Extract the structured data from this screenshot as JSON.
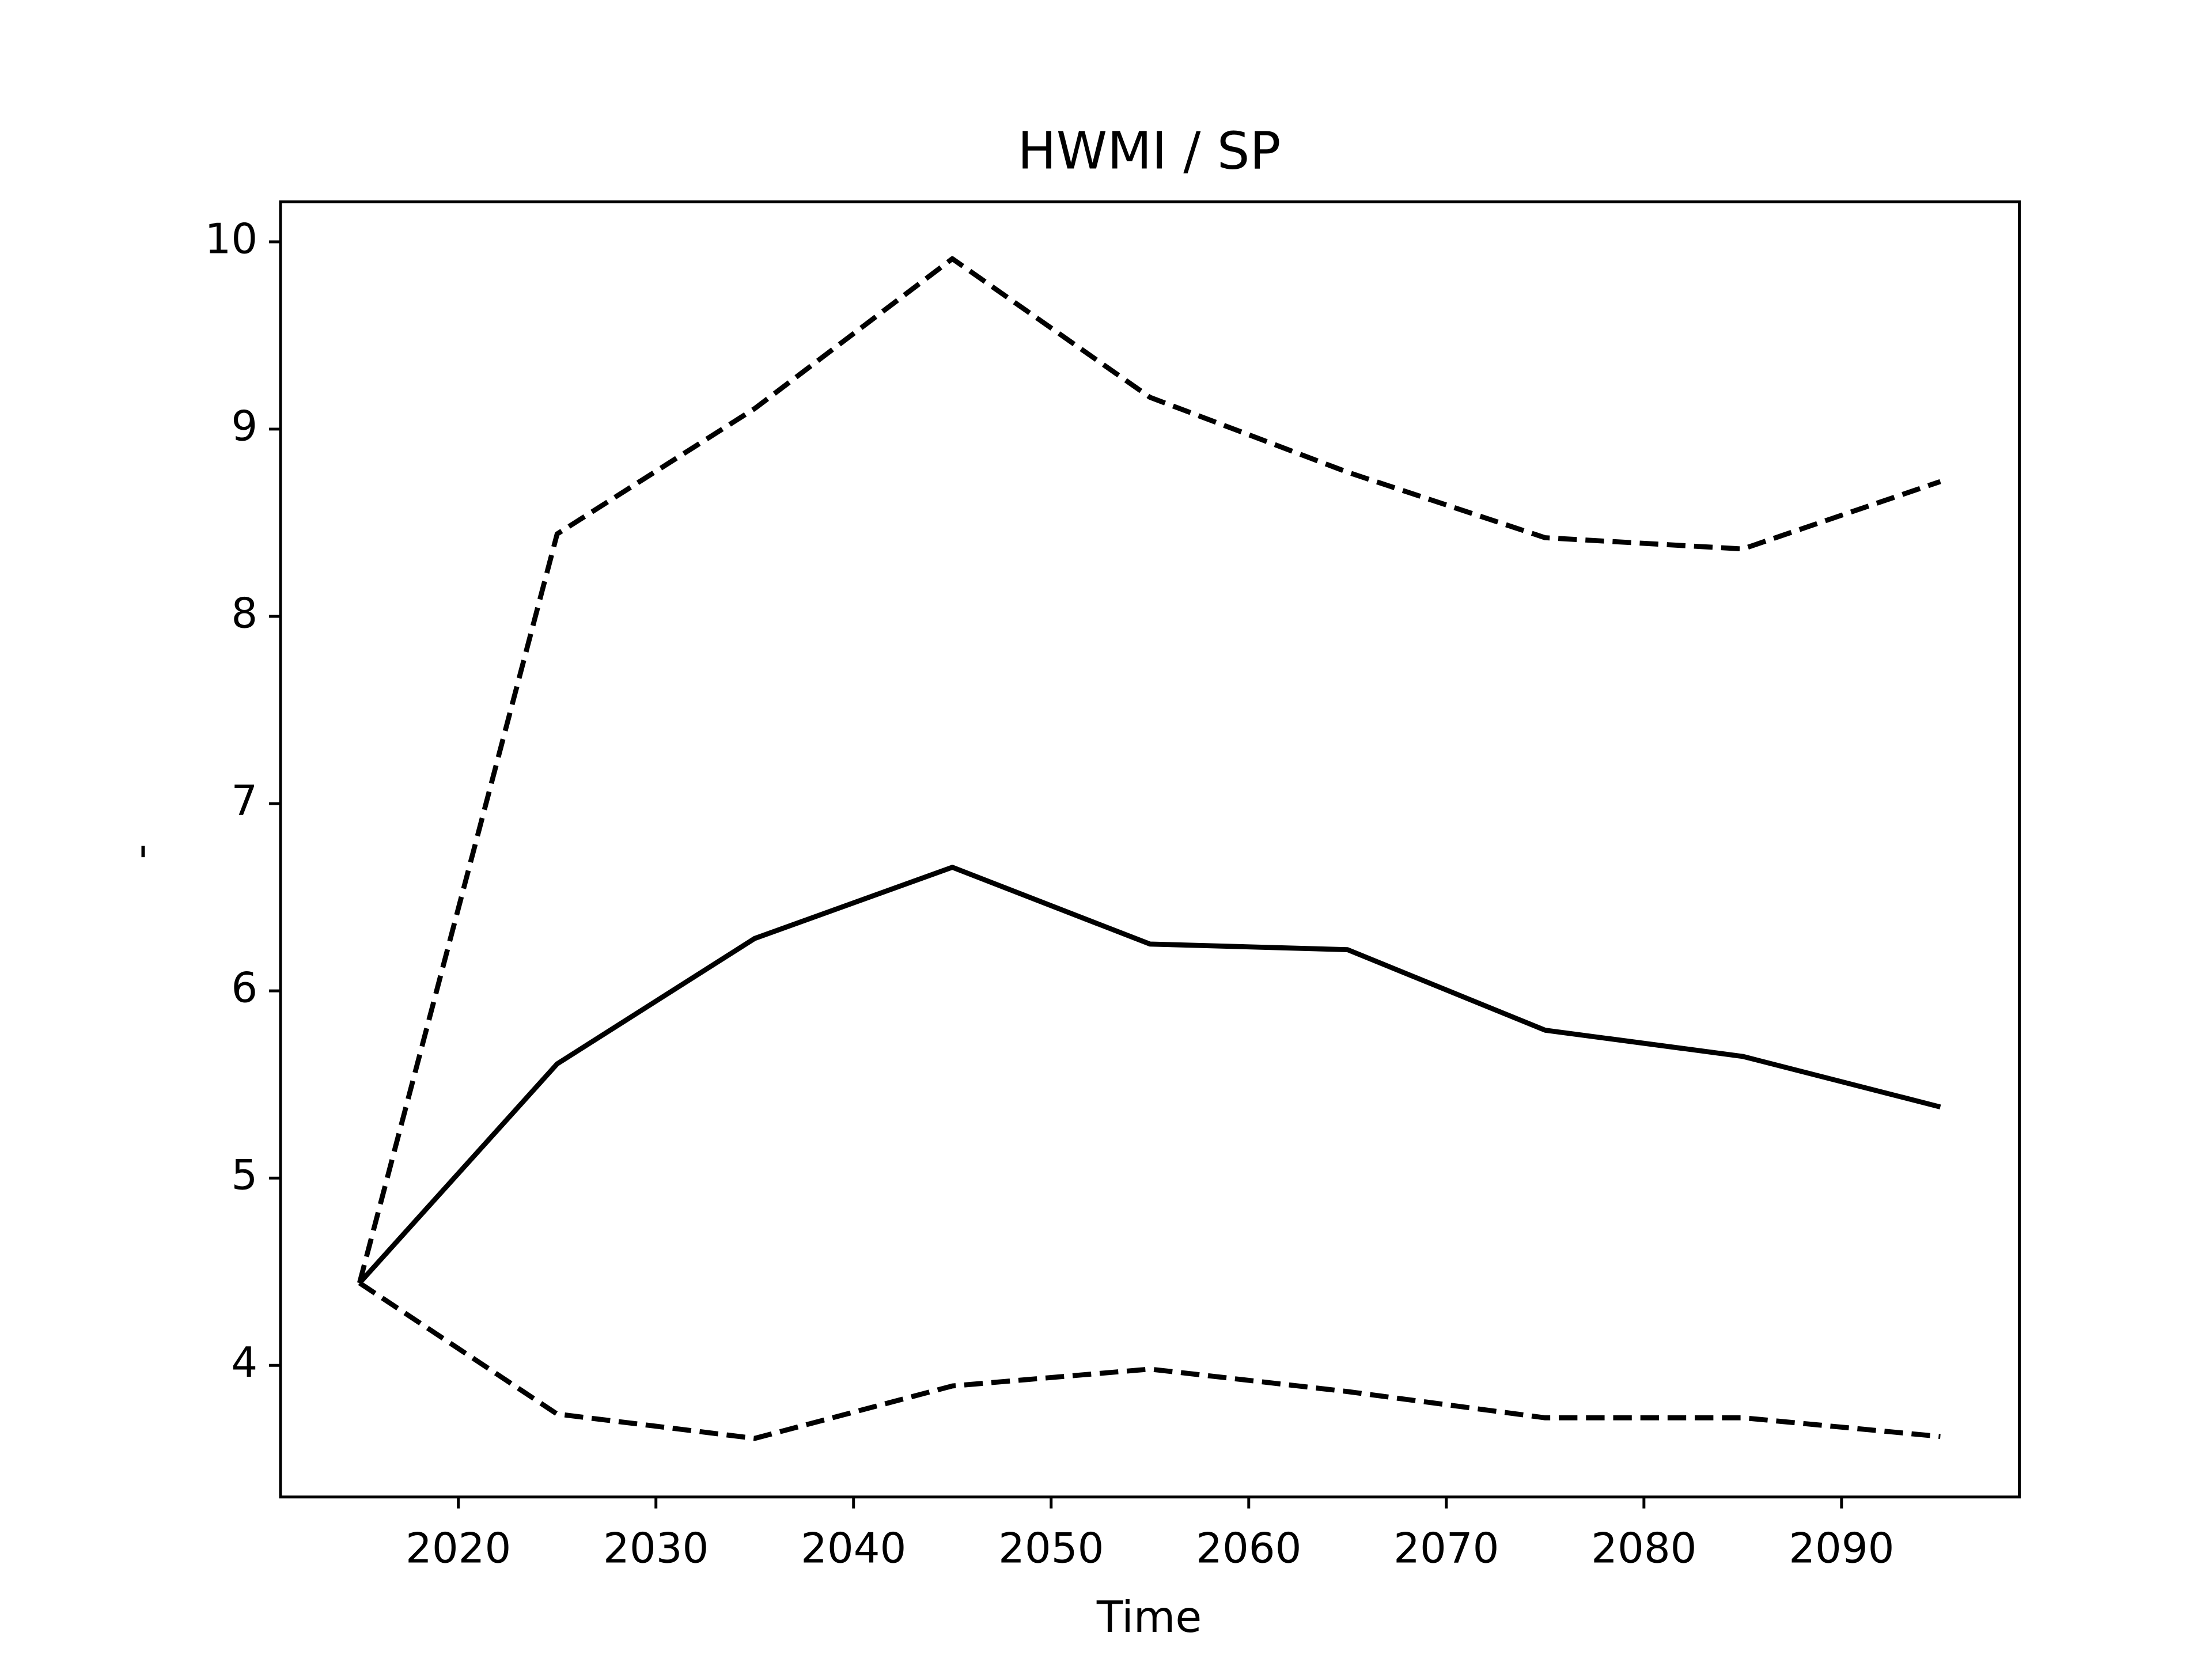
{
  "chart_data": {
    "type": "line",
    "title": "HWMI / SP",
    "xlabel": "Time",
    "ylabel": "-",
    "x": [
      2015,
      2025,
      2035,
      2045,
      2055,
      2065,
      2075,
      2085,
      2095
    ],
    "series": [
      {
        "color": "#000000",
        "dash": "solid",
        "values": [
          4.44,
          5.61,
          6.28,
          6.66,
          6.25,
          6.22,
          5.79,
          5.65,
          5.38
        ]
      },
      {
        "color": "#000000",
        "dash": "dashed",
        "values": [
          4.44,
          8.44,
          9.11,
          9.91,
          9.17,
          8.77,
          8.42,
          8.36,
          8.72
        ]
      },
      {
        "color": "#000000",
        "dash": "dashed",
        "values": [
          4.44,
          3.74,
          3.61,
          3.89,
          3.98,
          3.86,
          3.72,
          3.72,
          3.62
        ]
      }
    ],
    "xlim": [
      2011,
      2099
    ],
    "ylim": [
      3.297,
      10.214
    ],
    "xticks": [
      2020,
      2030,
      2040,
      2050,
      2060,
      2070,
      2080,
      2090
    ],
    "yticks": [
      4,
      5,
      6,
      7,
      8,
      9,
      10
    ],
    "grid": false
  }
}
